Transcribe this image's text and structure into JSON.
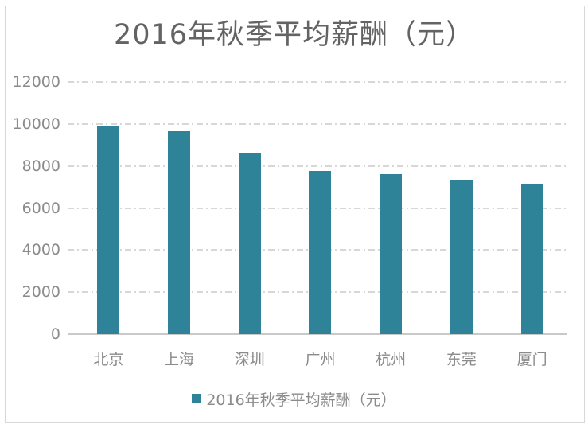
{
  "chart_data": {
    "type": "bar",
    "title": "2016年秋季平均薪酬（元）",
    "categories": [
      "北京",
      "上海",
      "深圳",
      "广州",
      "杭州",
      "东莞",
      "厦门"
    ],
    "series": [
      {
        "name": "2016年秋季平均薪酬（元）",
        "values": [
          9886,
          9642,
          8623,
          7754,
          7616,
          7347,
          7169
        ]
      }
    ],
    "xlabel": "",
    "ylabel": "",
    "ylim": [
      0,
      12000
    ],
    "ytick_step": 2000,
    "yticks": [
      0,
      2000,
      4000,
      6000,
      8000,
      10000,
      12000
    ],
    "grid": "horizontal-dash-dot",
    "legend_position": "bottom"
  },
  "legend": {
    "label": "2016年秋季平均薪酬（元）",
    "marker": "square"
  },
  "colors": {
    "bar": "#2f8399",
    "title_text": "#636363",
    "tick_text": "#8b8b8b",
    "gridline": "#d7d7d7",
    "axis_line": "#c9c9c9",
    "frame_border": "#d8d8d8",
    "background": "#ffffff"
  }
}
